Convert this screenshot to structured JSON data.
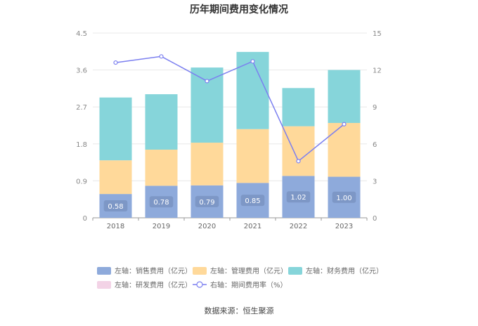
{
  "chart_data": {
    "type": "bar",
    "title": "历年期间费用变化情况",
    "categories": [
      "2018",
      "2019",
      "2020",
      "2021",
      "2022",
      "2023"
    ],
    "left_axis": {
      "min": 0,
      "max": 4.5,
      "ticks": [
        "0",
        "0.9",
        "1.8",
        "2.7",
        "3.6",
        "4.5"
      ]
    },
    "right_axis": {
      "min": 0,
      "max": 15,
      "ticks": [
        "0",
        "3",
        "6",
        "9",
        "12",
        "15"
      ]
    },
    "series": [
      {
        "name": "左轴：销售费用（亿元）",
        "type": "bar",
        "axis": "left",
        "color": "#8eaadb",
        "values": [
          0.58,
          0.78,
          0.79,
          0.85,
          1.02,
          1.0
        ],
        "labels": [
          "0.58",
          "0.78",
          "0.79",
          "0.85",
          "1.02",
          "1.00"
        ]
      },
      {
        "name": "左轴：管理费用（亿元）",
        "type": "bar",
        "axis": "left",
        "color": "#ffd99a",
        "values": [
          0.82,
          0.88,
          1.04,
          1.31,
          1.21,
          1.31
        ]
      },
      {
        "name": "左轴：财务费用（亿元）",
        "type": "bar",
        "axis": "left",
        "color": "#86d5da",
        "values": [
          1.53,
          1.35,
          1.83,
          1.88,
          0.93,
          1.29
        ]
      },
      {
        "name": "左轴：研发费用（亿元）",
        "type": "bar",
        "axis": "left",
        "color": "#f3d3e6",
        "values": [
          0,
          0,
          0,
          0,
          0,
          0
        ]
      },
      {
        "name": "右轴：期间费用率（%）",
        "type": "line",
        "axis": "right",
        "color": "#7b7ff0",
        "values": [
          12.6,
          13.1,
          11.1,
          12.7,
          4.6,
          7.6
        ]
      }
    ],
    "grid": true,
    "legend_position": "bottom"
  },
  "source": "数据来源：恒生聚源"
}
